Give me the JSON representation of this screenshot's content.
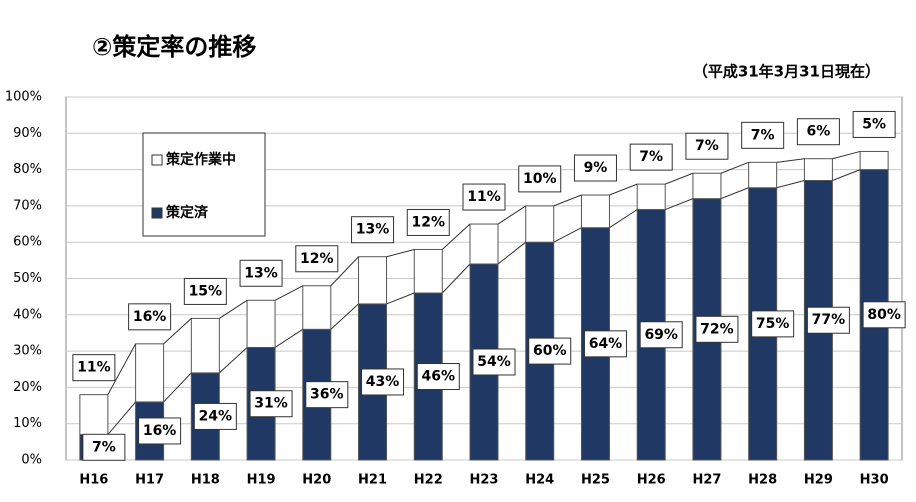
{
  "chart_data": {
    "type": "stacked_bar",
    "title": "②策定率の推移",
    "subtitle": "（平成31年3月31日現在）",
    "categories": [
      "H16",
      "H17",
      "H18",
      "H19",
      "H20",
      "H21",
      "H22",
      "H23",
      "H24",
      "H25",
      "H26",
      "H27",
      "H28",
      "H29",
      "H30"
    ],
    "series": [
      {
        "name": "策定済",
        "color": "#1f3864",
        "values": [
          7,
          16,
          24,
          31,
          36,
          43,
          46,
          54,
          60,
          64,
          69,
          72,
          75,
          77,
          80
        ],
        "value_labels": [
          "7%",
          "16%",
          "24%",
          "31%",
          "36%",
          "43%",
          "46%",
          "54%",
          "60%",
          "64%",
          "69%",
          "72%",
          "75%",
          "77%",
          "80%"
        ]
      },
      {
        "name": "策定作業中",
        "color": "#ffffff",
        "values": [
          11,
          16,
          15,
          13,
          12,
          13,
          12,
          11,
          10,
          9,
          7,
          7,
          7,
          6,
          5
        ],
        "value_labels": [
          "11%",
          "16%",
          "15%",
          "13%",
          "12%",
          "13%",
          "12%",
          "11%",
          "10%",
          "9%",
          "7%",
          "7%",
          "7%",
          "6%",
          "5%"
        ]
      }
    ],
    "ylim": [
      0,
      100
    ],
    "yticks": [
      {
        "value": 0,
        "label": "0%"
      },
      {
        "value": 10,
        "label": "10%"
      },
      {
        "value": 20,
        "label": "20%"
      },
      {
        "value": 30,
        "label": "30%"
      },
      {
        "value": 40,
        "label": "40%"
      },
      {
        "value": 50,
        "label": "50%"
      },
      {
        "value": 60,
        "label": "60%"
      },
      {
        "value": 70,
        "label": "70%"
      },
      {
        "value": 80,
        "label": "80%"
      },
      {
        "value": 90,
        "label": "90%"
      },
      {
        "value": 100,
        "label": "100%"
      }
    ],
    "grid": true,
    "legend": "upper left"
  }
}
